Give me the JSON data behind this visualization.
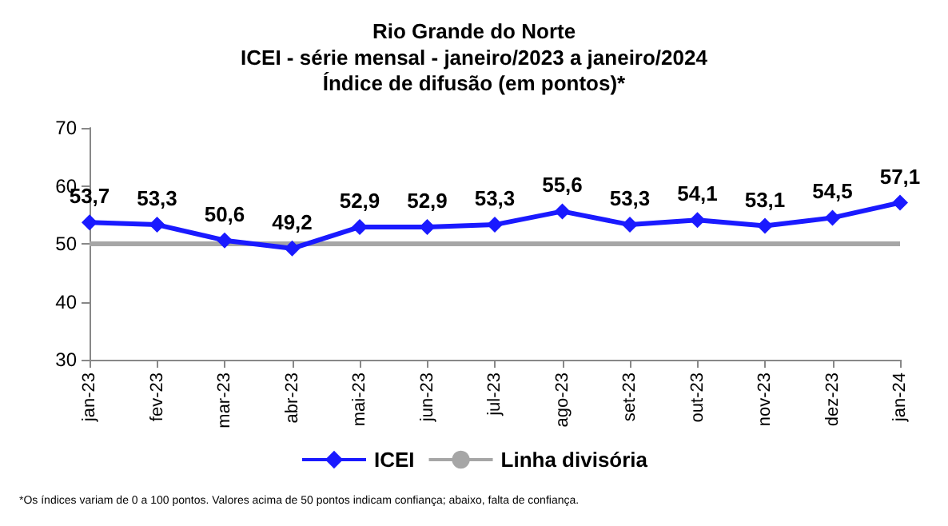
{
  "chart_data": {
    "type": "line",
    "title": "Rio Grande do Norte",
    "subtitle": "ICEI - série mensal - janeiro/2023 a janeiro/2024\nÍndice de difusão (em pontos)*",
    "categories": [
      "jan-23",
      "fev-23",
      "mar-23",
      "abr-23",
      "mai-23",
      "jun-23",
      "jul-23",
      "ago-23",
      "set-23",
      "out-23",
      "nov-23",
      "dez-23",
      "jan-24"
    ],
    "series": [
      {
        "name": "ICEI",
        "color": "#1a1aff",
        "values": [
          53.7,
          53.3,
          50.6,
          49.2,
          52.9,
          52.9,
          53.3,
          55.6,
          53.3,
          54.1,
          53.1,
          54.5,
          57.1
        ],
        "value_labels": [
          "53,7",
          "53,3",
          "50,6",
          "49,2",
          "52,9",
          "52,9",
          "53,3",
          "55,6",
          "53,3",
          "54,1",
          "53,1",
          "54,5",
          "57,1"
        ]
      }
    ],
    "ylim": [
      30,
      70
    ],
    "yticks": [
      30,
      40,
      50,
      60,
      70
    ],
    "ref_lines": [
      {
        "axis": "y",
        "value": 50,
        "label": "Linha divisória",
        "color": "#a6a6a6"
      }
    ],
    "marker": "diamond",
    "line_style": "solid",
    "grid": false,
    "legend": "bottom",
    "annotations": [
      "*Os índices variam de 0 a 100 pontos. Valores acima de 50 pontos indicam confiança; abaixo, falta de confiança."
    ]
  }
}
